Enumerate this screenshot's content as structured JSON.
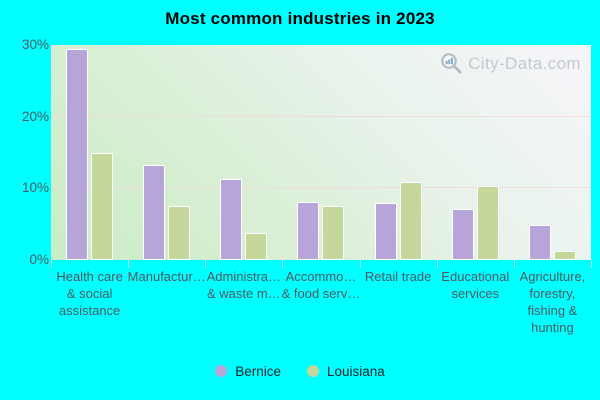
{
  "title": "Most common industries in 2023",
  "watermark": {
    "text": "City-Data.com"
  },
  "colors": {
    "background": "#00ffff",
    "bernice": "#b7a4d9",
    "louisiana": "#c4d89c",
    "bar_border": "#ffffff",
    "plot_gradient_top_right": "#f6f5fa",
    "plot_gradient_bottom_left": "#c8edc4",
    "gridline": "#f3d7db",
    "axis_text": "#4e5a62",
    "title_text": "#000000",
    "watermark_text": "#c4c8d1"
  },
  "chart_data": {
    "type": "bar",
    "title": "Most common industries in 2023",
    "categories": [
      "Health care & social assistance",
      "Manufactur…",
      "Administra… & waste m…",
      "Accommo… & food serv…",
      "Retail trade",
      "Educational services",
      "Agriculture, forestry, fishing & hunting"
    ],
    "category_display_lines": [
      [
        "Health care",
        "& social",
        "assistance"
      ],
      [
        "Manufactur…"
      ],
      [
        "Administra…",
        "& waste m…"
      ],
      [
        "Accommo…",
        "& food serv…"
      ],
      [
        "Retail trade"
      ],
      [
        "Educational",
        "services"
      ],
      [
        "Agriculture,",
        "forestry,",
        "fishing &",
        "hunting"
      ]
    ],
    "series": [
      {
        "name": "Bernice",
        "color": "#b7a4d9",
        "values": [
          29.4,
          13.2,
          11.3,
          8.1,
          8.0,
          7.1,
          4.9
        ]
      },
      {
        "name": "Louisiana",
        "color": "#c4d89c",
        "values": [
          14.9,
          7.5,
          3.7,
          7.6,
          10.9,
          10.3,
          1.2
        ]
      }
    ],
    "unit": "%",
    "xlabel": "",
    "ylabel": "",
    "ylim": [
      0,
      30
    ],
    "yticks": [
      {
        "value": 0,
        "label": "0%"
      },
      {
        "value": 10,
        "label": "10%"
      },
      {
        "value": 20,
        "label": "20%"
      },
      {
        "value": 30,
        "label": "30%"
      }
    ],
    "gridline_values": [
      10,
      20
    ],
    "grid": "horizontal",
    "legend_position": "bottom"
  },
  "legend": {
    "items": [
      {
        "label": "Bernice",
        "color": "#b7a4d9"
      },
      {
        "label": "Louisiana",
        "color": "#c4d89c"
      }
    ]
  }
}
